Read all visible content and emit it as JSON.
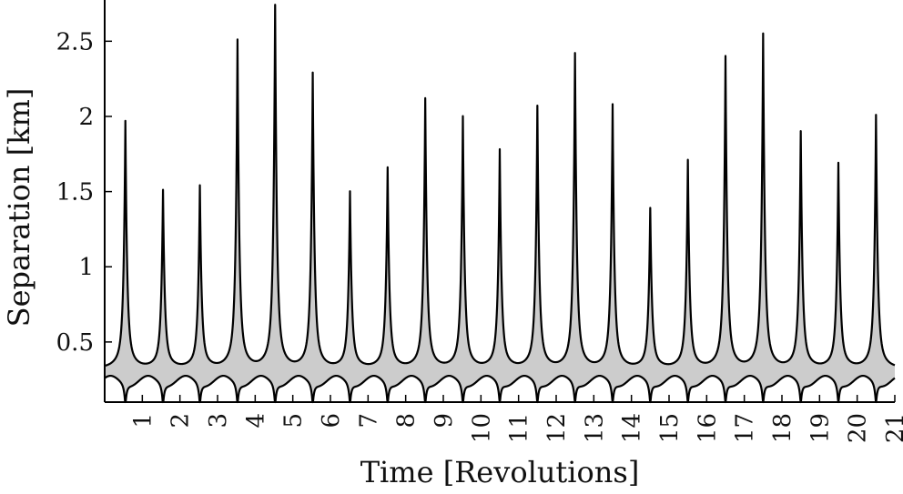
{
  "chart_data": {
    "type": "area",
    "xlabel": "Time [Revolutions]",
    "ylabel": "Separation [km]",
    "xlim": [
      0,
      21
    ],
    "ylim": [
      0.1,
      2.75
    ],
    "x_ticks": [
      "1",
      "2",
      "3",
      "4",
      "5",
      "6",
      "7",
      "8",
      "9",
      "10",
      "11",
      "12",
      "13",
      "14",
      "15",
      "16",
      "17",
      "18",
      "19",
      "20",
      "21"
    ],
    "y_ticks": [
      {
        "value": 0.5,
        "label": "0.5"
      },
      {
        "value": 1,
        "label": "1"
      },
      {
        "value": 1.5,
        "label": "1.5"
      },
      {
        "value": 2,
        "label": "2"
      },
      {
        "value": 2.5,
        "label": "2.5"
      }
    ],
    "upper_peaks": [
      {
        "x": 0.55,
        "y": 1.97
      },
      {
        "x": 1.55,
        "y": 1.51
      },
      {
        "x": 2.53,
        "y": 1.54
      },
      {
        "x": 3.53,
        "y": 2.51
      },
      {
        "x": 4.53,
        "y": 2.74
      },
      {
        "x": 5.53,
        "y": 2.29
      },
      {
        "x": 6.52,
        "y": 1.5
      },
      {
        "x": 7.52,
        "y": 1.66
      },
      {
        "x": 8.52,
        "y": 2.12
      },
      {
        "x": 9.52,
        "y": 2.0
      },
      {
        "x": 10.5,
        "y": 1.78
      },
      {
        "x": 11.5,
        "y": 2.07
      },
      {
        "x": 12.5,
        "y": 2.42
      },
      {
        "x": 13.5,
        "y": 2.08
      },
      {
        "x": 14.5,
        "y": 1.39
      },
      {
        "x": 15.5,
        "y": 1.71
      },
      {
        "x": 16.5,
        "y": 2.4
      },
      {
        "x": 17.5,
        "y": 2.55
      },
      {
        "x": 18.5,
        "y": 1.9
      },
      {
        "x": 19.5,
        "y": 1.69
      },
      {
        "x": 20.5,
        "y": 2.01
      }
    ],
    "upper_base": 0.33,
    "lower_base": 0.24,
    "lower_min": 0.1,
    "fill_color": "#cccccc",
    "line_color": "#000000",
    "grid": false
  }
}
